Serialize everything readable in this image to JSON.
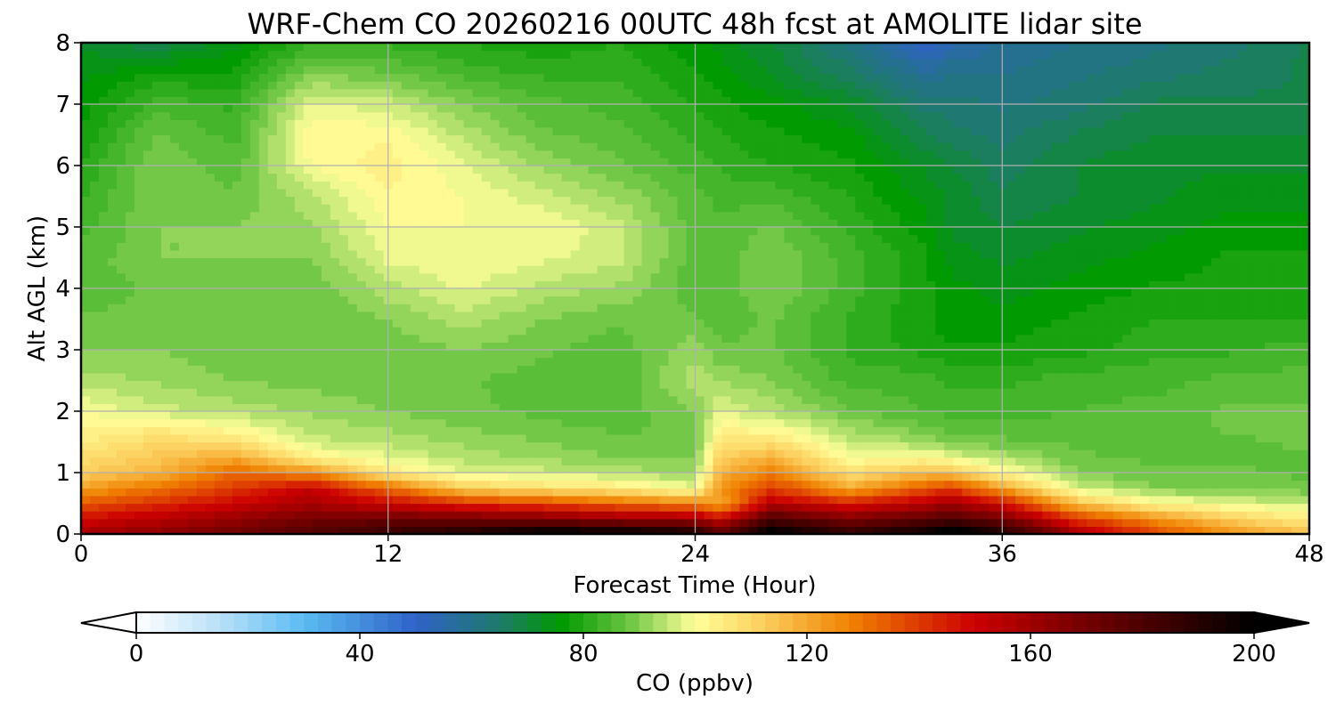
{
  "chart_data": {
    "type": "heatmap",
    "title": "WRF-Chem CO  20260216 00UTC 48h fcst at AMOLITE lidar site",
    "xlabel": "Forecast Time (Hour)",
    "ylabel": "Alt AGL (km)",
    "xlim": [
      0,
      48
    ],
    "ylim": [
      0,
      8
    ],
    "x_ticks": [
      "0",
      "12",
      "24",
      "36",
      "48"
    ],
    "y_ticks": [
      "0",
      "1",
      "2",
      "3",
      "4",
      "5",
      "6",
      "7",
      "8"
    ],
    "grid": true,
    "colorbar": {
      "label": "CO  (ppbv)",
      "range": [
        0,
        200
      ],
      "ticks": [
        "0",
        "40",
        "80",
        "120",
        "160",
        "200"
      ],
      "extend": "both",
      "stops": [
        {
          "value": 0,
          "color": "#ffffff"
        },
        {
          "value": 15,
          "color": "#b8e0f8"
        },
        {
          "value": 30,
          "color": "#5bbcf2"
        },
        {
          "value": 50,
          "color": "#2f62c8"
        },
        {
          "value": 65,
          "color": "#1e7a6a"
        },
        {
          "value": 76,
          "color": "#009900"
        },
        {
          "value": 88,
          "color": "#6bc443"
        },
        {
          "value": 100,
          "color": "#ffff99"
        },
        {
          "value": 112,
          "color": "#fcd05e"
        },
        {
          "value": 128,
          "color": "#f08000"
        },
        {
          "value": 150,
          "color": "#cc0000"
        },
        {
          "value": 168,
          "color": "#7a0000"
        },
        {
          "value": 200,
          "color": "#000000"
        }
      ]
    },
    "x": [
      0,
      3,
      6,
      9,
      12,
      15,
      18,
      21,
      24,
      25,
      27,
      30,
      33,
      34,
      36,
      39,
      42,
      45,
      48
    ],
    "y": [
      0,
      0.25,
      0.5,
      0.75,
      1,
      1.25,
      1.5,
      1.75,
      2,
      2.5,
      3,
      3.5,
      4,
      4.5,
      5,
      5.5,
      6,
      6.5,
      7,
      7.5,
      8
    ],
    "z": [
      [
        160,
        165,
        172,
        180,
        188,
        195,
        205,
        205,
        198,
        178,
        205,
        190,
        200,
        210,
        195,
        160,
        138,
        125,
        115
      ],
      [
        148,
        155,
        162,
        170,
        172,
        170,
        168,
        162,
        160,
        150,
        180,
        168,
        175,
        180,
        170,
        140,
        125,
        112,
        105
      ],
      [
        135,
        142,
        150,
        158,
        150,
        142,
        138,
        132,
        128,
        120,
        155,
        145,
        155,
        160,
        148,
        115,
        102,
        98,
        95
      ],
      [
        122,
        130,
        140,
        152,
        132,
        112,
        108,
        105,
        98,
        125,
        140,
        120,
        135,
        140,
        122,
        96,
        90,
        89,
        88
      ],
      [
        112,
        118,
        132,
        125,
        105,
        98,
        96,
        94,
        92,
        118,
        128,
        108,
        115,
        115,
        102,
        90,
        88,
        88,
        87
      ],
      [
        108,
        114,
        120,
        104,
        98,
        94,
        92,
        90,
        90,
        112,
        118,
        100,
        102,
        98,
        94,
        88,
        87,
        87,
        87
      ],
      [
        105,
        110,
        108,
        96,
        94,
        92,
        90,
        88,
        88,
        106,
        108,
        96,
        92,
        90,
        88,
        87,
        86,
        87,
        88
      ],
      [
        102,
        104,
        100,
        94,
        92,
        90,
        88,
        87,
        88,
        102,
        100,
        92,
        88,
        86,
        86,
        86,
        86,
        88,
        88
      ],
      [
        100,
        96,
        94,
        92,
        90,
        88,
        87,
        86,
        90,
        98,
        94,
        88,
        85,
        84,
        84,
        85,
        86,
        88,
        88
      ],
      [
        94,
        92,
        90,
        89,
        88,
        88,
        86,
        85,
        94,
        92,
        90,
        84,
        84,
        82,
        82,
        84,
        84,
        86,
        86
      ],
      [
        90,
        90,
        88,
        88,
        88,
        90,
        88,
        86,
        92,
        88,
        88,
        82,
        79,
        78,
        78,
        79,
        82,
        82,
        84
      ],
      [
        88,
        88,
        88,
        88,
        90,
        94,
        90,
        88,
        88,
        86,
        88,
        82,
        78,
        76,
        76,
        78,
        80,
        80,
        80
      ],
      [
        86,
        88,
        88,
        88,
        94,
        98,
        94,
        92,
        86,
        86,
        90,
        84,
        78,
        76,
        74,
        76,
        78,
        78,
        78
      ],
      [
        86,
        90,
        90,
        90,
        98,
        100,
        98,
        96,
        86,
        86,
        90,
        84,
        78,
        74,
        72,
        74,
        76,
        78,
        78
      ],
      [
        84,
        90,
        90,
        92,
        100,
        100,
        100,
        96,
        86,
        86,
        88,
        82,
        76,
        72,
        70,
        72,
        74,
        76,
        76
      ],
      [
        82,
        90,
        88,
        94,
        102,
        100,
        96,
        92,
        86,
        84,
        84,
        80,
        74,
        72,
        68,
        70,
        72,
        74,
        74
      ],
      [
        80,
        90,
        86,
        100,
        104,
        98,
        92,
        88,
        84,
        82,
        80,
        78,
        72,
        70,
        66,
        70,
        72,
        72,
        72
      ],
      [
        78,
        88,
        84,
        102,
        102,
        94,
        88,
        86,
        82,
        80,
        78,
        76,
        68,
        66,
        64,
        68,
        70,
        70,
        70
      ],
      [
        76,
        84,
        82,
        98,
        96,
        90,
        86,
        84,
        80,
        78,
        76,
        72,
        64,
        64,
        62,
        64,
        68,
        68,
        68
      ],
      [
        74,
        78,
        78,
        90,
        88,
        84,
        82,
        82,
        78,
        76,
        72,
        66,
        58,
        60,
        60,
        62,
        64,
        66,
        68
      ],
      [
        72,
        68,
        74,
        82,
        82,
        80,
        78,
        80,
        76,
        74,
        70,
        62,
        50,
        54,
        58,
        60,
        62,
        64,
        68
      ]
    ]
  }
}
